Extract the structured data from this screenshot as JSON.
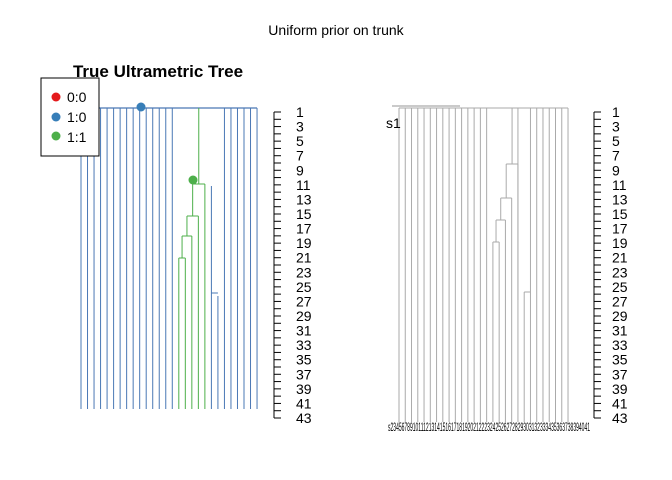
{
  "figure": {
    "title": "Uniform prior on trunk",
    "left_panel_title": "True Ultrametric Tree"
  },
  "legend": {
    "items": [
      {
        "label": "0:0",
        "color": "#e41a1c"
      },
      {
        "label": "1:0",
        "color": "#377eb8"
      },
      {
        "label": "1:1",
        "color": "#4daf4a"
      }
    ]
  },
  "axis": {
    "tick_labels": [
      "1",
      "3",
      "5",
      "7",
      "9",
      "11",
      "13",
      "15",
      "17",
      "19",
      "21",
      "23",
      "25",
      "27",
      "29",
      "31",
      "33",
      "35",
      "37",
      "39",
      "41",
      "43"
    ]
  },
  "right_panel": {
    "root_label": "s1",
    "tip_labels_text": "s234567891011121314151617181920212223242526272829303132333435363738394041"
  },
  "colors": {
    "state_1_0_branch": "#4a78b5",
    "state_1_1_branch": "#4daf4a",
    "right_tree_branch": "#aaaaaa",
    "axis": "#000000"
  }
}
